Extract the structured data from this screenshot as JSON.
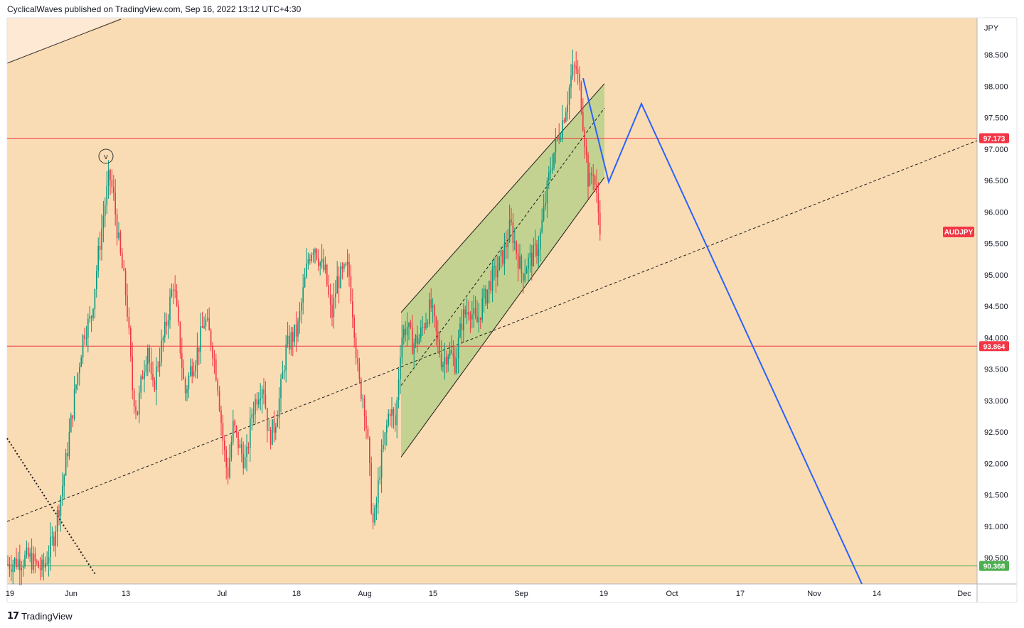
{
  "header": {
    "publisher_text": "CyclicalWaves published on TradingView.com, Sep 16, 2022 13:12 UTC+4:30"
  },
  "chart_data": {
    "type": "candlestick",
    "symbol": "AUDJPY",
    "currency": "JPY",
    "ylim": [
      90.2,
      99.3
    ],
    "price_axis": {
      "ticks": [
        98.5,
        98.0,
        97.5,
        97.0,
        96.5,
        96.0,
        95.5,
        95.0,
        94.5,
        94.0,
        93.5,
        93.0,
        92.5,
        92.0,
        91.5,
        91.0,
        90.5
      ],
      "tick_labels": [
        "98.500",
        "98.000",
        "97.500",
        "97.000",
        "96.500",
        "96.000",
        "95.500",
        "95.000",
        "94.500",
        "94.000",
        "93.500",
        "93.000",
        "92.500",
        "92.000",
        "91.500",
        "91.000",
        "90.500"
      ]
    },
    "time_axis": {
      "labels": [
        "19",
        "Jun",
        "13",
        "Jul",
        "18",
        "Aug",
        "15",
        "Sep",
        "19",
        "Oct",
        "17",
        "Nov",
        "14",
        "Dec"
      ]
    },
    "horizontal_levels": [
      {
        "value": 97.173,
        "label": "97.173",
        "color": "#f23645"
      },
      {
        "value": 93.864,
        "label": "93.864",
        "color": "#f23645"
      },
      {
        "value": 90.368,
        "label": "90.368",
        "color": "#4caf50"
      }
    ],
    "symbol_badge": {
      "label": "AUDJPY",
      "value": 95.68,
      "color": "#f23645"
    },
    "wave_marker": {
      "label": "v",
      "at": "early Jun high",
      "value": 96.8
    },
    "projection_path": [
      98.15,
      96.48,
      97.73,
      90.2
    ],
    "channel": {
      "upper_start": 94.4,
      "upper_end": 97.7,
      "lower_start": 92.1,
      "lower_end": 96.55
    },
    "colors": {
      "background": "#fadcb4",
      "channel_fill": "#b9d08a",
      "projection": "#2962ff",
      "candle_up": "#089981",
      "candle_down": "#f23645"
    }
  },
  "footer": {
    "logo_mark": "17",
    "brand": "TradingView"
  }
}
